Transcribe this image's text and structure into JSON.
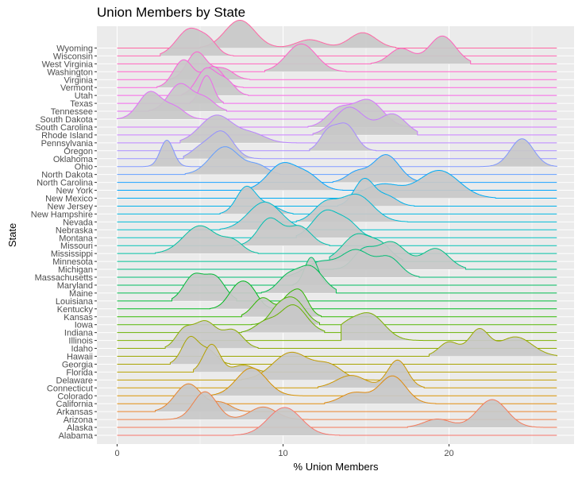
{
  "chart_data": {
    "type": "ridgeline",
    "title": "Union Members by State",
    "xlabel": "% Union Members",
    "ylabel": "State",
    "xlim": [
      0,
      26.5
    ],
    "x_ticks": [
      0,
      10,
      20
    ],
    "grid": true,
    "fill_color": "#c8c8c8",
    "panel_color": "#ebebeb",
    "series": [
      {
        "name": "Alabama",
        "color": "#F8766D",
        "peaks": [
          [
            10.1,
            1.0,
            1.0
          ]
        ],
        "range": [
          7.0,
          13.4
        ]
      },
      {
        "name": "Alaska",
        "color": "#F47A5A",
        "peaks": [
          [
            22.6,
            1.0,
            0.9
          ],
          [
            19.3,
            0.3,
            0.8
          ]
        ],
        "range": [
          17.5,
          26.5
        ]
      },
      {
        "name": "Arizona",
        "color": "#EE7E45",
        "peaks": [
          [
            5.3,
            1.0,
            0.7
          ],
          [
            8.8,
            0.45,
            0.8
          ]
        ],
        "range": [
          2.6,
          12.4
        ]
      },
      {
        "name": "Arkansas",
        "color": "#E7842C",
        "peaks": [
          [
            4.3,
            1.0,
            0.8
          ],
          [
            6.3,
            0.3,
            0.6
          ]
        ],
        "range": [
          2.3,
          9.5
        ]
      },
      {
        "name": "California",
        "color": "#DF8A0C",
        "peaks": [
          [
            16.6,
            1.0,
            0.8
          ],
          [
            14.3,
            0.4,
            0.8
          ]
        ],
        "range": [
          12.5,
          19.2
        ]
      },
      {
        "name": "Colorado",
        "color": "#D69000",
        "peaks": [
          [
            8.1,
            1.0,
            0.9
          ]
        ],
        "range": [
          5.7,
          12.3
        ]
      },
      {
        "name": "Connecticut",
        "color": "#CC9600",
        "peaks": [
          [
            16.9,
            1.0,
            0.6
          ],
          [
            14.1,
            0.45,
            0.9
          ]
        ],
        "range": [
          12.1,
          18.5
        ]
      },
      {
        "name": "Delaware",
        "color": "#C19B00",
        "peaks": [
          [
            10.5,
            1.0,
            1.1
          ],
          [
            12.8,
            0.5,
            0.8
          ]
        ],
        "range": [
          7.5,
          15.5
        ]
      },
      {
        "name": "Florida",
        "color": "#B5A000",
        "peaks": [
          [
            5.7,
            1.0,
            0.5
          ],
          [
            7.6,
            0.25,
            0.6
          ]
        ],
        "range": [
          4.6,
          9.0
        ]
      },
      {
        "name": "Georgia",
        "color": "#A9A400",
        "peaks": [
          [
            4.4,
            1.0,
            0.5
          ],
          [
            5.5,
            0.5,
            0.5
          ]
        ],
        "range": [
          3.2,
          6.8
        ]
      },
      {
        "name": "Hawaii",
        "color": "#9CA700",
        "peaks": [
          [
            21.8,
            1.0,
            0.6
          ],
          [
            24.0,
            0.75,
            1.0
          ],
          [
            20.0,
            0.55,
            0.6
          ]
        ],
        "range": [
          18.8,
          26.5
        ]
      },
      {
        "name": "Idaho",
        "color": "#8DAB00",
        "peaks": [
          [
            5.3,
            1.0,
            0.7
          ],
          [
            7.0,
            0.65,
            0.6
          ],
          [
            4.0,
            0.6,
            0.5
          ]
        ],
        "range": [
          2.9,
          8.5
        ]
      },
      {
        "name": "Illinois",
        "color": "#7CAE00",
        "peaks": [
          [
            15.2,
            1.0,
            0.9
          ],
          [
            13.7,
            0.45,
            0.7
          ]
        ],
        "range": [
          13.5,
          18.8
        ]
      },
      {
        "name": "Indiana",
        "color": "#68B000",
        "peaks": [
          [
            10.6,
            1.0,
            0.8
          ],
          [
            8.9,
            0.35,
            0.6
          ]
        ],
        "range": [
          7.5,
          12.5
        ]
      },
      {
        "name": "Iowa",
        "color": "#52B400",
        "peaks": [
          [
            10.6,
            1.0,
            0.7
          ],
          [
            9.6,
            0.4,
            0.5
          ]
        ],
        "range": [
          8.1,
          12.2
        ]
      },
      {
        "name": "Kansas",
        "color": "#2FB600",
        "peaks": [
          [
            11.0,
            1.0,
            0.5
          ],
          [
            8.8,
            0.75,
            0.6
          ],
          [
            10.2,
            0.5,
            0.4
          ]
        ],
        "range": [
          7.5,
          12.3
        ]
      },
      {
        "name": "Kentucky",
        "color": "#00B81F",
        "peaks": [
          [
            7.3,
            1.0,
            0.6
          ],
          [
            8.1,
            0.6,
            0.5
          ]
        ],
        "range": [
          5.6,
          9.5
        ]
      },
      {
        "name": "Louisiana",
        "color": "#00BA38",
        "peaks": [
          [
            4.6,
            1.0,
            0.6
          ],
          [
            5.9,
            0.95,
            0.6
          ]
        ],
        "range": [
          3.3,
          7.2
        ]
      },
      {
        "name": "Maine",
        "color": "#00BB4E",
        "peaks": [
          [
            11.6,
            1.0,
            0.8
          ],
          [
            10.2,
            0.5,
            0.6
          ]
        ],
        "range": [
          8.7,
          13.2
        ]
      },
      {
        "name": "Maryland",
        "color": "#00BC62",
        "peaks": [
          [
            11.7,
            1.0,
            0.4
          ]
        ],
        "range": [
          10.6,
          12.8
        ]
      },
      {
        "name": "Massachusetts",
        "color": "#00BD74",
        "peaks": [
          [
            14.4,
            1.0,
            0.9
          ],
          [
            16.4,
            0.7,
            0.7
          ],
          [
            12.2,
            0.55,
            0.9
          ]
        ],
        "range": [
          10.0,
          18.2
        ]
      },
      {
        "name": "Michigan",
        "color": "#00BE84",
        "peaks": [
          [
            16.5,
            1.0,
            0.9
          ],
          [
            19.2,
            0.75,
            0.8
          ],
          [
            14.8,
            0.6,
            0.6
          ]
        ],
        "range": [
          13.0,
          21.0
        ]
      },
      {
        "name": "Minnesota",
        "color": "#00BF94",
        "peaks": [
          [
            14.5,
            1.0,
            0.9
          ],
          [
            16.0,
            0.45,
            0.6
          ]
        ],
        "range": [
          12.8,
          17.2
        ]
      },
      {
        "name": "Mississippi",
        "color": "#00C0A3",
        "peaks": [
          [
            5.0,
            1.0,
            1.0
          ],
          [
            7.0,
            0.4,
            0.6
          ]
        ],
        "range": [
          2.3,
          8.5
        ]
      },
      {
        "name": "Missouri",
        "color": "#00BFB1",
        "peaks": [
          [
            9.2,
            1.0,
            0.7
          ],
          [
            11.0,
            0.7,
            0.7
          ]
        ],
        "range": [
          7.0,
          12.8
        ]
      },
      {
        "name": "Montana",
        "color": "#00BEBE",
        "peaks": [
          [
            12.6,
            1.0,
            0.8
          ],
          [
            14.0,
            0.45,
            0.6
          ]
        ],
        "range": [
          10.8,
          15.3
        ]
      },
      {
        "name": "Nebraska",
        "color": "#00BCCA",
        "peaks": [
          [
            8.9,
            1.0,
            1.0
          ]
        ],
        "range": [
          6.2,
          11.2
        ]
      },
      {
        "name": "Nevada",
        "color": "#00B9D6",
        "peaks": [
          [
            14.4,
            1.0,
            1.0
          ],
          [
            12.5,
            0.6,
            0.7
          ]
        ],
        "range": [
          10.8,
          17.5
        ]
      },
      {
        "name": "New Hampshire",
        "color": "#00B5E1",
        "peaks": [
          [
            7.8,
            1.0,
            0.6
          ],
          [
            9.2,
            0.3,
            0.6
          ]
        ],
        "range": [
          6.2,
          10.6
        ]
      },
      {
        "name": "New Jersey",
        "color": "#00B1EB",
        "peaks": [
          [
            14.9,
            1.0,
            0.6
          ],
          [
            16.3,
            0.35,
            0.6
          ]
        ],
        "range": [
          13.3,
          17.9
        ]
      },
      {
        "name": "New Mexico",
        "color": "#00ABF4",
        "peaks": [
          [
            19.4,
            1.0,
            1.2
          ],
          [
            16.0,
            0.5,
            1.1
          ]
        ],
        "range": [
          14.3,
          22.8
        ]
      },
      {
        "name": "New York",
        "color": "#00A5FC",
        "peaks": [
          [
            10.0,
            1.0,
            0.9
          ],
          [
            11.6,
            0.45,
            0.7
          ]
        ],
        "range": [
          7.6,
          13.6
        ]
      },
      {
        "name": "North Carolina",
        "color": "#1AA0FF",
        "peaks": [
          [
            16.2,
            1.0,
            0.8
          ],
          [
            14.4,
            0.35,
            0.6
          ]
        ],
        "range": [
          13.0,
          18.2
        ]
      },
      {
        "name": "North Dakota",
        "color": "#619CFF",
        "peaks": [
          [
            6.5,
            1.0,
            0.9
          ],
          [
            8.5,
            0.3,
            0.6
          ]
        ],
        "range": [
          4.1,
          9.8
        ]
      },
      {
        "name": "Ohio",
        "color": "#7F96FF",
        "peaks": [
          [
            24.4,
            1.0,
            0.7
          ],
          [
            3.0,
            0.95,
            0.4
          ]
        ],
        "range": [
          1.3,
          26.5
        ]
      },
      {
        "name": "Oklahoma",
        "color": "#9590FF",
        "peaks": [
          [
            6.3,
            1.0,
            0.7
          ],
          [
            5.0,
            0.35,
            0.6
          ]
        ],
        "range": [
          4.0,
          8.8
        ]
      },
      {
        "name": "Oregon",
        "color": "#A88AFF",
        "peaks": [
          [
            13.8,
            1.0,
            0.6
          ],
          [
            12.7,
            0.7,
            0.5
          ]
        ],
        "range": [
          11.6,
          15.6
        ]
      },
      {
        "name": "Pennsylvania",
        "color": "#B983FF",
        "peaks": [
          [
            6.0,
            1.0,
            1.0
          ],
          [
            8.2,
            0.3,
            0.8
          ]
        ],
        "range": [
          3.8,
          10.8
        ]
      },
      {
        "name": "Rhode Island",
        "color": "#C77CFF",
        "peaks": [
          [
            14.0,
            1.0,
            0.9
          ],
          [
            16.6,
            0.75,
            0.8
          ]
        ],
        "range": [
          11.8,
          18.1
        ]
      },
      {
        "name": "South Carolina",
        "color": "#D376FF",
        "peaks": [
          [
            15.1,
            1.0,
            0.9
          ],
          [
            13.3,
            0.6,
            0.7
          ]
        ],
        "range": [
          11.5,
          17.6
        ]
      },
      {
        "name": "South Dakota",
        "color": "#DE70F9",
        "peaks": [
          [
            2.0,
            1.0,
            0.7
          ],
          [
            3.5,
            0.4,
            0.6
          ]
        ],
        "range": [
          0.0,
          5.2
        ]
      },
      {
        "name": "Tennessee",
        "color": "#E76BF3",
        "peaks": [
          [
            3.8,
            1.0,
            0.7
          ],
          [
            5.3,
            0.45,
            0.6
          ]
        ],
        "range": [
          1.9,
          6.6
        ]
      },
      {
        "name": "Texas",
        "color": "#EF67EB",
        "peaks": [
          [
            5.4,
            1.0,
            0.4
          ]
        ],
        "range": [
          4.4,
          6.4
        ]
      },
      {
        "name": "Utah",
        "color": "#F564E3",
        "peaks": [
          [
            5.4,
            1.0,
            0.6
          ],
          [
            6.6,
            0.5,
            0.5
          ]
        ],
        "range": [
          3.9,
          7.9
        ]
      },
      {
        "name": "Vermont",
        "color": "#FA62DB",
        "peaks": [
          [
            4.0,
            1.0,
            0.6
          ],
          [
            5.8,
            0.75,
            0.6
          ]
        ],
        "range": [
          2.4,
          7.6
        ]
      },
      {
        "name": "Virginia",
        "color": "#FD61D1",
        "peaks": [
          [
            4.8,
            1.0,
            0.6
          ],
          [
            6.4,
            0.4,
            0.6
          ]
        ],
        "range": [
          3.2,
          8.0
        ]
      },
      {
        "name": "Washington",
        "color": "#FF61C7",
        "peaks": [
          [
            11.1,
            1.0,
            0.9
          ]
        ],
        "range": [
          8.9,
          13.8
        ]
      },
      {
        "name": "West Virginia",
        "color": "#FF62BC",
        "peaks": [
          [
            19.6,
            1.0,
            0.8
          ],
          [
            17.1,
            0.55,
            0.7
          ]
        ],
        "range": [
          15.3,
          21.3
        ]
      },
      {
        "name": "Wisconsin",
        "color": "#FF64B0",
        "peaks": [
          [
            4.4,
            1.0,
            0.8
          ],
          [
            5.6,
            0.35,
            0.5
          ]
        ],
        "range": [
          2.6,
          7.0
        ]
      },
      {
        "name": "Wyoming",
        "color": "#FF67A4",
        "peaks": [
          [
            7.4,
            1.0,
            0.9
          ],
          [
            14.8,
            0.55,
            0.8
          ],
          [
            11.6,
            0.3,
            0.8
          ]
        ],
        "range": [
          5.0,
          16.8
        ]
      }
    ]
  }
}
